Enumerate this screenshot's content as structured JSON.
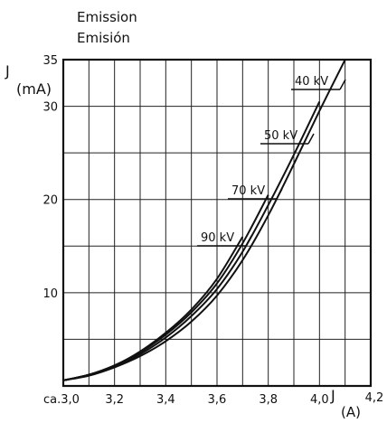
{
  "chart_data": {
    "type": "line",
    "title": "Emission",
    "subtitle": "Emisión",
    "ylabel_symbol": "J",
    "ylabel_unit": "(mA)",
    "xlabel_symbol": "J",
    "xlabel_unit": "(A)",
    "xlim": [
      3.0,
      4.2
    ],
    "ylim": [
      0,
      35
    ],
    "x_ticks": [
      {
        "value": 3.0,
        "label": "ca.3,0"
      },
      {
        "value": 3.2,
        "label": "3,2"
      },
      {
        "value": 3.4,
        "label": "3,4"
      },
      {
        "value": 3.6,
        "label": "3,6"
      },
      {
        "value": 3.8,
        "label": "3,8"
      },
      {
        "value": 4.0,
        "label": "4,0"
      },
      {
        "value": 4.2,
        "label": "4,2"
      }
    ],
    "y_ticks": [
      {
        "value": 10,
        "label": "10"
      },
      {
        "value": 20,
        "label": "20"
      },
      {
        "value": 30,
        "label": "30"
      },
      {
        "value": 35,
        "label": "35"
      }
    ],
    "grid": true,
    "series": [
      {
        "name": "40 kV",
        "x": [
          3.0,
          3.1,
          3.2,
          3.3,
          3.4,
          3.5,
          3.6,
          3.7,
          3.8,
          3.9,
          4.0,
          4.1
        ],
        "y": [
          0.6,
          1.1,
          2.0,
          3.2,
          4.8,
          6.9,
          9.7,
          13.5,
          18.3,
          23.8,
          29.5,
          35.0
        ]
      },
      {
        "name": "50 kV",
        "x": [
          3.0,
          3.1,
          3.2,
          3.3,
          3.4,
          3.5,
          3.6,
          3.7,
          3.8,
          3.9,
          4.0
        ],
        "y": [
          0.6,
          1.2,
          2.1,
          3.4,
          5.2,
          7.5,
          10.4,
          14.4,
          19.4,
          24.8,
          30.5
        ]
      },
      {
        "name": "70 kV",
        "x": [
          3.0,
          3.1,
          3.2,
          3.3,
          3.4,
          3.5,
          3.6,
          3.7,
          3.8
        ],
        "y": [
          0.6,
          1.2,
          2.2,
          3.6,
          5.5,
          7.9,
          11.0,
          15.3,
          20.5
        ]
      },
      {
        "name": "90 kV",
        "x": [
          3.0,
          3.1,
          3.2,
          3.3,
          3.4,
          3.5,
          3.6,
          3.7
        ],
        "y": [
          0.6,
          1.2,
          2.2,
          3.7,
          5.7,
          8.2,
          11.5,
          16.0
        ]
      }
    ]
  }
}
